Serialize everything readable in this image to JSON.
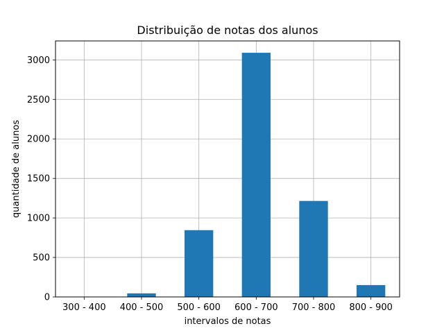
{
  "chart_data": {
    "type": "bar",
    "title": "Distribuição de notas dos alunos",
    "xlabel": "intervalos de notas",
    "ylabel": "quantidade de alunos",
    "categories": [
      "300 - 400",
      "400 - 500",
      "500 - 600",
      "600 - 700",
      "700 - 800",
      "800 - 900"
    ],
    "values": [
      0,
      45,
      845,
      3090,
      1215,
      150
    ],
    "ylim": [
      0,
      3240
    ],
    "yticks": [
      0,
      500,
      1000,
      1500,
      2000,
      2500,
      3000
    ],
    "grid": true,
    "legend": "none",
    "bar_color": "#1f77b4"
  }
}
